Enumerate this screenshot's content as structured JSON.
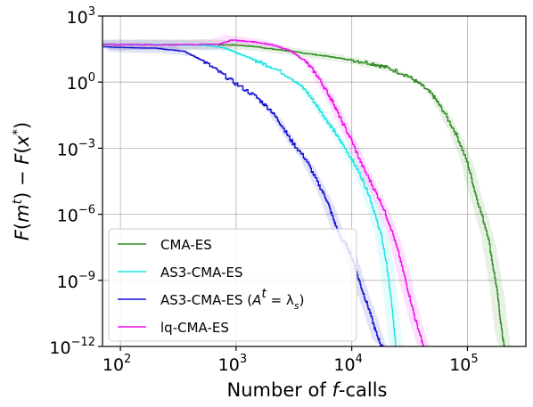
{
  "chart_data": {
    "type": "line",
    "xlabel": "Number of f-calls",
    "ylabel": "F(m^t) − F(x^*)",
    "x_scale": "log",
    "y_scale": "log",
    "xlim": [
      70,
      320000
    ],
    "ylim": [
      1e-12,
      1000
    ],
    "x_ticks": [
      {
        "value": 100,
        "base": "10",
        "exp": "2"
      },
      {
        "value": 1000,
        "base": "10",
        "exp": "3"
      },
      {
        "value": 10000,
        "base": "10",
        "exp": "4"
      },
      {
        "value": 100000,
        "base": "10",
        "exp": "5"
      }
    ],
    "y_ticks": [
      {
        "value": 1000,
        "base": "10",
        "exp": "3"
      },
      {
        "value": 1,
        "base": "10",
        "exp": "0"
      },
      {
        "value": 0.001,
        "base": "10",
        "exp": "−3"
      },
      {
        "value": 1e-06,
        "base": "10",
        "exp": "−6"
      },
      {
        "value": 1e-09,
        "base": "10",
        "exp": "−9"
      },
      {
        "value": 1e-12,
        "base": "10",
        "exp": "−12"
      }
    ],
    "grid": true,
    "legend_position": "bottom-left",
    "series": [
      {
        "name": "CMA-ES",
        "color": "#2e8b22",
        "x": [
          70,
          300,
          700,
          1000,
          1500,
          2000,
          3000,
          4000,
          6000,
          8000,
          10000,
          15000,
          20000,
          30000,
          40000,
          50000,
          60000,
          80000,
          100000,
          120000,
          150000,
          180000,
          200000,
          210000
        ],
        "y": [
          50,
          50,
          50,
          48,
          40,
          32,
          25,
          20,
          15,
          12,
          10,
          7,
          4.5,
          2,
          0.7,
          0.25,
          0.06,
          0.004,
          0.0002,
          5e-06,
          1e-07,
          3e-10,
          3e-12,
          8e-13
        ]
      },
      {
        "name": "AS3-CMA-ES",
        "color": "#22e4e4",
        "x": [
          70,
          300,
          600,
          800,
          1000,
          1200,
          1500,
          2000,
          3000,
          4000,
          5000,
          6000,
          7000,
          8000,
          10000,
          12000,
          14000,
          16000,
          18000,
          20000,
          22000,
          24000
        ],
        "y": [
          50,
          50,
          45,
          35,
          22,
          15,
          9,
          5,
          1.5,
          0.4,
          0.08,
          0.02,
          0.006,
          0.002,
          0.0003,
          5e-05,
          8e-06,
          8e-07,
          1e-07,
          5e-09,
          1e-10,
          8e-13
        ]
      },
      {
        "name": "AS3-CMA-ES (A^t = λ_s)",
        "color": "#1010d0",
        "x": [
          70,
          200,
          350,
          500,
          700,
          1000,
          1500,
          2000,
          2500,
          3000,
          4000,
          5000,
          6000,
          7000,
          8000,
          9000,
          10000,
          12000,
          14000,
          16000,
          18000,
          20000
        ],
        "y": [
          40,
          35,
          25,
          10,
          3,
          0.8,
          0.2,
          0.05,
          0.01,
          0.002,
          0.0003,
          3e-05,
          5e-06,
          5e-07,
          8e-08,
          4e-08,
          1e-08,
          5e-10,
          5e-11,
          5e-12,
          1e-12,
          8e-13
        ]
      },
      {
        "name": "lq-CMA-ES",
        "color": "#ee10ee",
        "x": [
          70,
          300,
          700,
          900,
          1100,
          1500,
          2000,
          3000,
          4000,
          5000,
          6000,
          7000,
          8000,
          10000,
          12000,
          15000,
          18000,
          22000,
          26000,
          30000,
          35000,
          40000,
          42000
        ],
        "y": [
          50,
          50,
          52,
          80,
          75,
          65,
          50,
          25,
          8,
          2,
          0.4,
          0.1,
          0.02,
          0.002,
          0.0002,
          2e-05,
          3e-06,
          2e-07,
          1e-08,
          5e-10,
          2e-11,
          2e-12,
          8e-13
        ]
      }
    ]
  }
}
